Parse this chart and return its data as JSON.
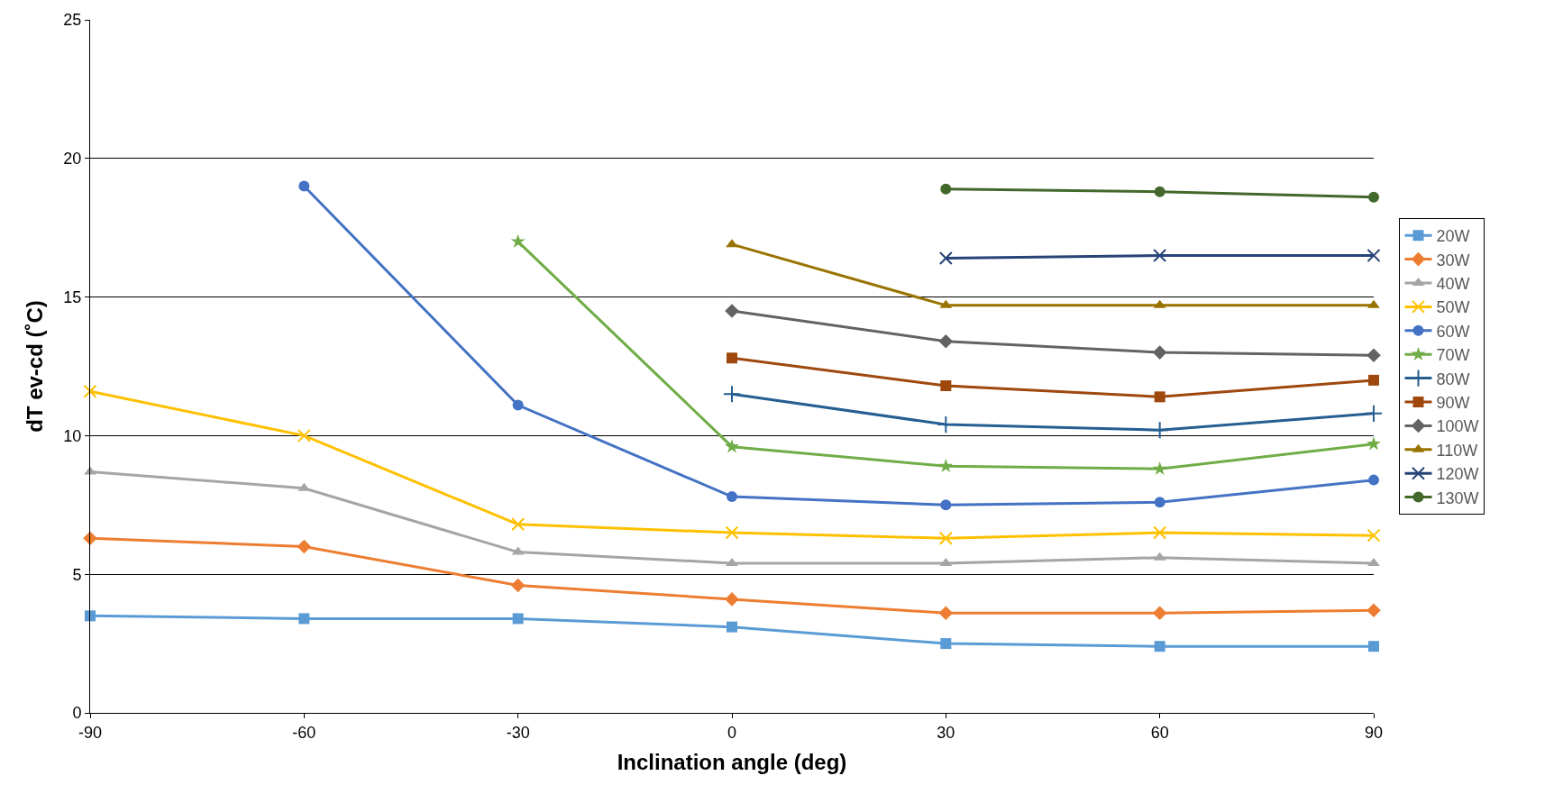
{
  "chart_data": {
    "type": "line",
    "xlabel": "Inclination angle (deg)",
    "ylabel": "dT ev-cd (˚C)",
    "x": [
      -90,
      -60,
      -30,
      0,
      30,
      60,
      90
    ],
    "xlim": [
      -90,
      90
    ],
    "xticks": [
      -90,
      -60,
      -30,
      0,
      30,
      60,
      90
    ],
    "ylim": [
      0,
      25
    ],
    "yticks": [
      0,
      5,
      10,
      15,
      20,
      25
    ],
    "grid": "y",
    "legend": "right",
    "line_style": "solid",
    "series": [
      {
        "name": "20W",
        "color": "#5b9bd5",
        "marker": "square",
        "values": [
          3.5,
          3.4,
          3.4,
          3.1,
          2.5,
          2.4,
          2.4
        ]
      },
      {
        "name": "30W",
        "color": "#ed7d31",
        "marker": "diamond",
        "values": [
          6.3,
          6.0,
          4.6,
          4.1,
          3.6,
          3.6,
          3.7
        ]
      },
      {
        "name": "40W",
        "color": "#a5a5a5",
        "marker": "triangle",
        "values": [
          8.7,
          8.1,
          5.8,
          5.4,
          5.4,
          5.6,
          5.4
        ]
      },
      {
        "name": "50W",
        "color": "#ffc000",
        "marker": "cross",
        "values": [
          11.6,
          10.0,
          6.8,
          6.5,
          6.3,
          6.5,
          6.4
        ]
      },
      {
        "name": "60W",
        "color": "#4472c4",
        "marker": "circle",
        "values": [
          null,
          19.0,
          11.1,
          7.8,
          7.5,
          7.6,
          8.4
        ]
      },
      {
        "name": "70W",
        "color": "#70ad47",
        "marker": "star",
        "values": [
          null,
          null,
          17.0,
          9.6,
          8.9,
          8.8,
          9.7
        ]
      },
      {
        "name": "80W",
        "color": "#255e91",
        "marker": "plus",
        "values": [
          null,
          null,
          null,
          11.5,
          10.4,
          10.2,
          10.8
        ]
      },
      {
        "name": "90W",
        "color": "#9e480e",
        "marker": "square",
        "values": [
          null,
          null,
          null,
          12.8,
          11.8,
          11.4,
          12.0
        ]
      },
      {
        "name": "100W",
        "color": "#636363",
        "marker": "diamond",
        "values": [
          null,
          null,
          null,
          14.5,
          13.4,
          13.0,
          12.9
        ]
      },
      {
        "name": "110W",
        "color": "#997300",
        "marker": "triangle",
        "values": [
          null,
          null,
          null,
          16.9,
          14.7,
          14.7,
          14.7
        ]
      },
      {
        "name": "120W",
        "color": "#264478",
        "marker": "cross",
        "values": [
          null,
          null,
          null,
          null,
          16.4,
          16.5,
          16.5
        ]
      },
      {
        "name": "130W",
        "color": "#43682b",
        "marker": "circle",
        "values": [
          null,
          null,
          null,
          null,
          18.9,
          18.8,
          18.6
        ]
      }
    ]
  }
}
